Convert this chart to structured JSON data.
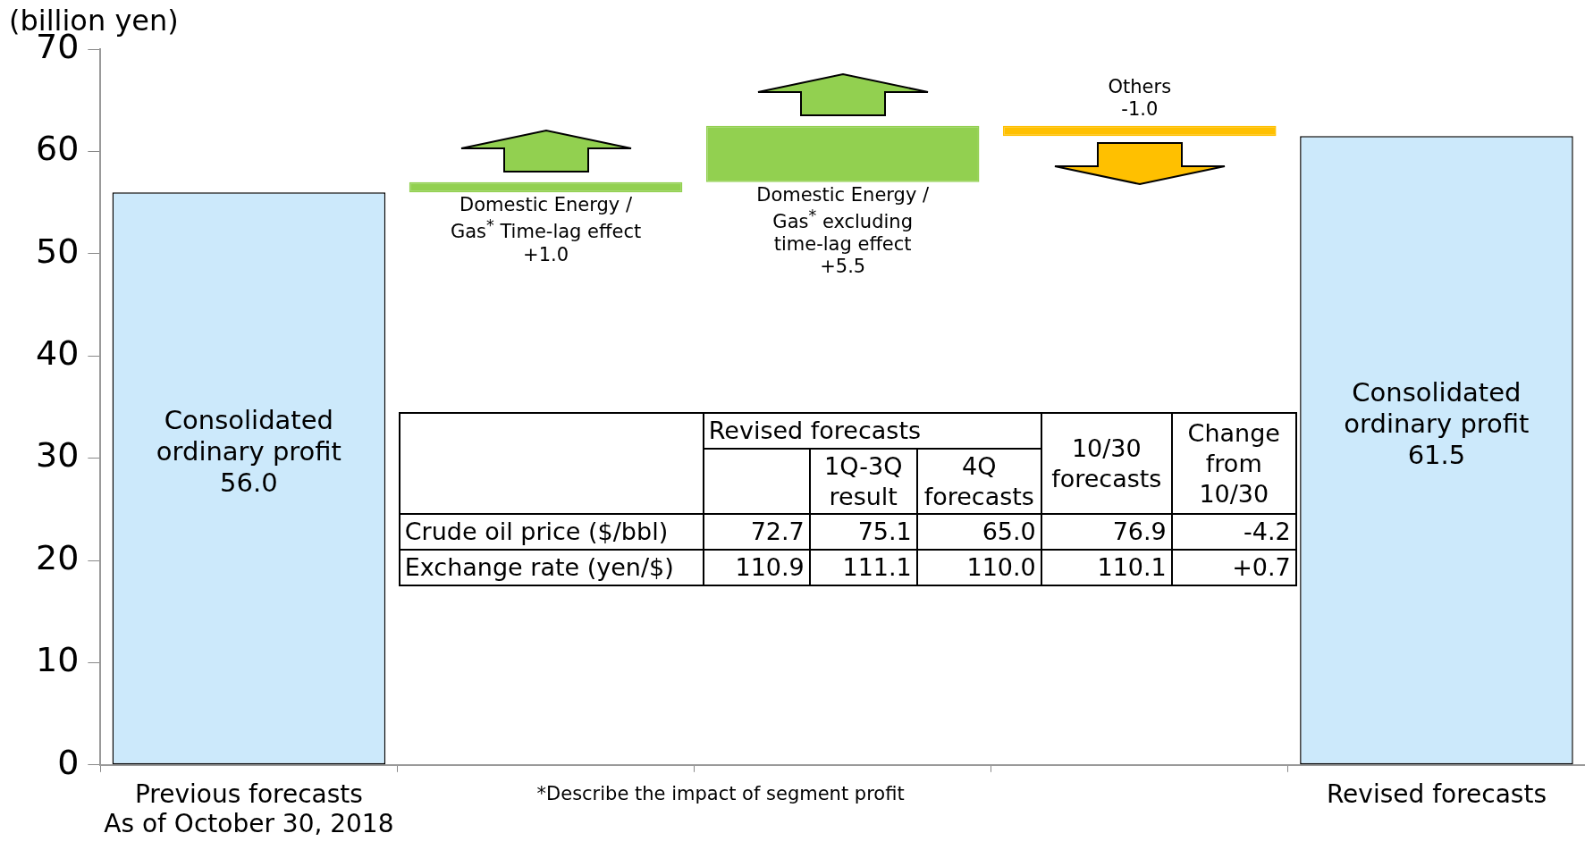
{
  "chart_data": {
    "type": "bar",
    "ylabel": "(billion yen)",
    "categories": [
      "Previous forecasts\nAs of October 30, 2018",
      null,
      null,
      null,
      "Revised forecasts"
    ],
    "values": [
      56.0,
      1.0,
      5.5,
      -1.0,
      61.5
    ],
    "base": [
      0,
      56.0,
      57.0,
      62.5,
      0
    ],
    "colors": [
      "#cce9fb",
      "#92d050",
      "#92d050",
      "#ffc000",
      "#cce9fb"
    ],
    "value_labels": [
      "Consolidated\nordinary profit\n56.0",
      "Domestic Energy /\nGas$^{*}$ Time-lag effect\n+1.0",
      "Domestic Energy /\nGas$^{*}$ excluding\ntime-lag effect\n+5.5",
      "Others\n-1.0",
      "Consolidated\nordinary profit\n61.5"
    ],
    "ylim": [
      0,
      70
    ],
    "yticks": [
      0,
      10,
      20,
      30,
      40,
      50,
      60,
      70
    ],
    "grid": false,
    "legend": false,
    "annotations": [
      "Revised forecasts",
      "10/30 forecasts",
      "Change from 10/30",
      "1Q-3Q result",
      "4Q forecasts",
      "Crude oil price ($/bbl)",
      "72.7",
      "75.1",
      "65.0",
      "76.9",
      "-4.2",
      "Exchange rate (yen/$)",
      "110.9",
      "111.1",
      "110.0",
      "110.1",
      "+0.7",
      "*Describe the impact of segment profit"
    ]
  }
}
